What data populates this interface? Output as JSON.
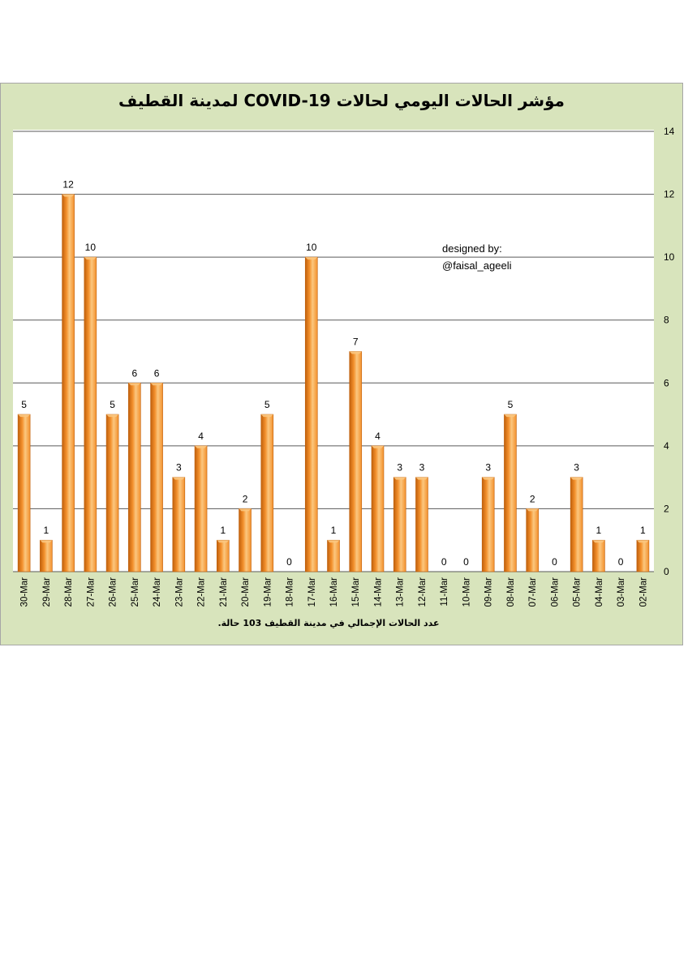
{
  "title": "مؤشر الحالات اليومي لحالات  COVID-19 لمدينة القطيف",
  "credit": {
    "line1": "designed by:",
    "line2": "@faisal_ageeli"
  },
  "footnote": "عدد الحالات الإجمالي في مدينة القطيف  103 حالة.",
  "colors": {
    "bar_light": "#fbc77f",
    "bar_mid": "#f3902c",
    "bar_dark": "#c0600c",
    "background": "#d8e4bc",
    "plot": "#ffffff",
    "grid": "#5a5a5a"
  },
  "chart_data": {
    "type": "bar",
    "title": "مؤشر الحالات اليومي لحالات  COVID-19 لمدينة القطيف",
    "xlabel": "",
    "ylabel": "",
    "ylim": [
      0,
      14
    ],
    "yticks": [
      0,
      2,
      4,
      6,
      8,
      10,
      12,
      14
    ],
    "y_axis_side": "right",
    "grid": true,
    "legend": "none",
    "categories": [
      "30-Mar",
      "29-Mar",
      "28-Mar",
      "27-Mar",
      "26-Mar",
      "25-Mar",
      "24-Mar",
      "23-Mar",
      "22-Mar",
      "21-Mar",
      "20-Mar",
      "19-Mar",
      "18-Mar",
      "17-Mar",
      "16-Mar",
      "15-Mar",
      "14-Mar",
      "13-Mar",
      "12-Mar",
      "11-Mar",
      "10-Mar",
      "09-Mar",
      "08-Mar",
      "07-Mar",
      "06-Mar",
      "05-Mar",
      "04-Mar",
      "03-Mar",
      "02-Mar"
    ],
    "values": [
      5,
      1,
      12,
      10,
      5,
      6,
      6,
      3,
      4,
      1,
      2,
      5,
      0,
      10,
      1,
      7,
      4,
      3,
      3,
      0,
      0,
      3,
      5,
      2,
      0,
      3,
      1,
      0,
      1
    ]
  }
}
